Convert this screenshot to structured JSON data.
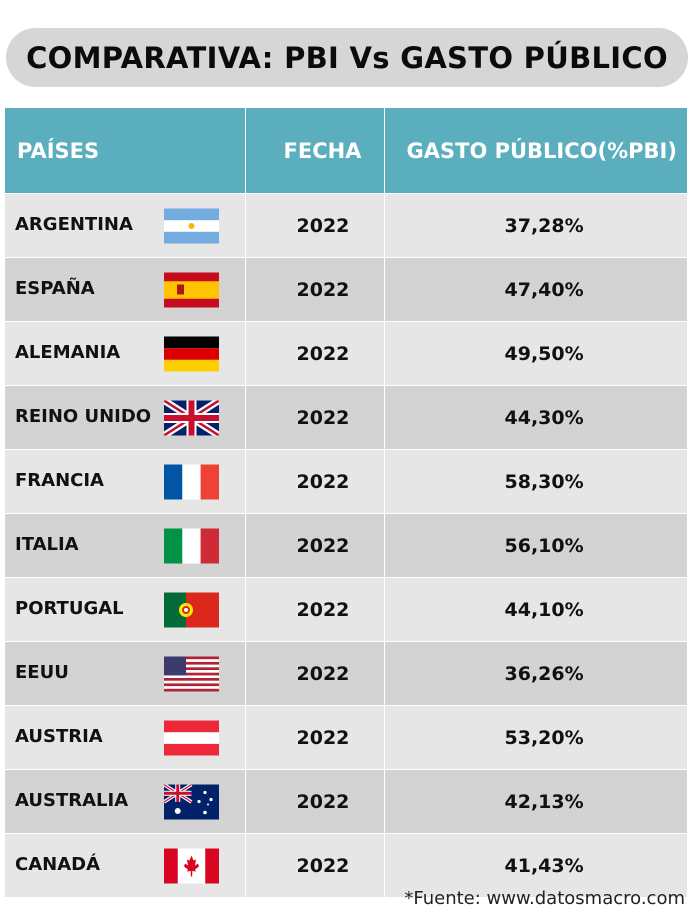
{
  "title": "COMPARATIVA: PBI Vs GASTO PÚBLICO",
  "headers": {
    "country": "PAÍSES",
    "date": "FECHA",
    "spending": "GASTO PÚBLICO(%PBI)"
  },
  "source": "*Fuente: www.datosmacro.com",
  "chart_data": {
    "type": "table",
    "title": "COMPARATIVA: PBI Vs GASTO PÚBLICO",
    "columns": [
      "PAÍSES",
      "FECHA",
      "GASTO PÚBLICO(%PBI)"
    ],
    "rows": [
      {
        "country": "ARGENTINA",
        "flag": "argentina-flag-icon",
        "year": "2022",
        "value": "37,28%"
      },
      {
        "country": "ESPAÑA",
        "flag": "spain-flag-icon",
        "year": "2022",
        "value": "47,40%"
      },
      {
        "country": "ALEMANIA",
        "flag": "germany-flag-icon",
        "year": "2022",
        "value": "49,50%"
      },
      {
        "country": "REINO UNIDO",
        "flag": "uk-flag-icon",
        "year": "2022",
        "value": "44,30%"
      },
      {
        "country": "FRANCIA",
        "flag": "france-flag-icon",
        "year": "2022",
        "value": "58,30%"
      },
      {
        "country": "ITALIA",
        "flag": "italy-flag-icon",
        "year": "2022",
        "value": "56,10%"
      },
      {
        "country": "PORTUGAL",
        "flag": "portugal-flag-icon",
        "year": "2022",
        "value": "44,10%"
      },
      {
        "country": "EEUU",
        "flag": "usa-flag-icon",
        "year": "2022",
        "value": "36,26%"
      },
      {
        "country": "AUSTRIA",
        "flag": "austria-flag-icon",
        "year": "2022",
        "value": "53,20%"
      },
      {
        "country": "AUSTRALIA",
        "flag": "australia-flag-icon",
        "year": "2022",
        "value": "42,13%"
      },
      {
        "country": "CANADÁ",
        "flag": "canada-flag-icon",
        "year": "2022",
        "value": "41,43%"
      }
    ]
  },
  "colors": {
    "header": "#5aaebe",
    "row_light": "#e6e6e6",
    "row_dark": "#d3d3d3",
    "title_bg": "#d6d6d6"
  }
}
